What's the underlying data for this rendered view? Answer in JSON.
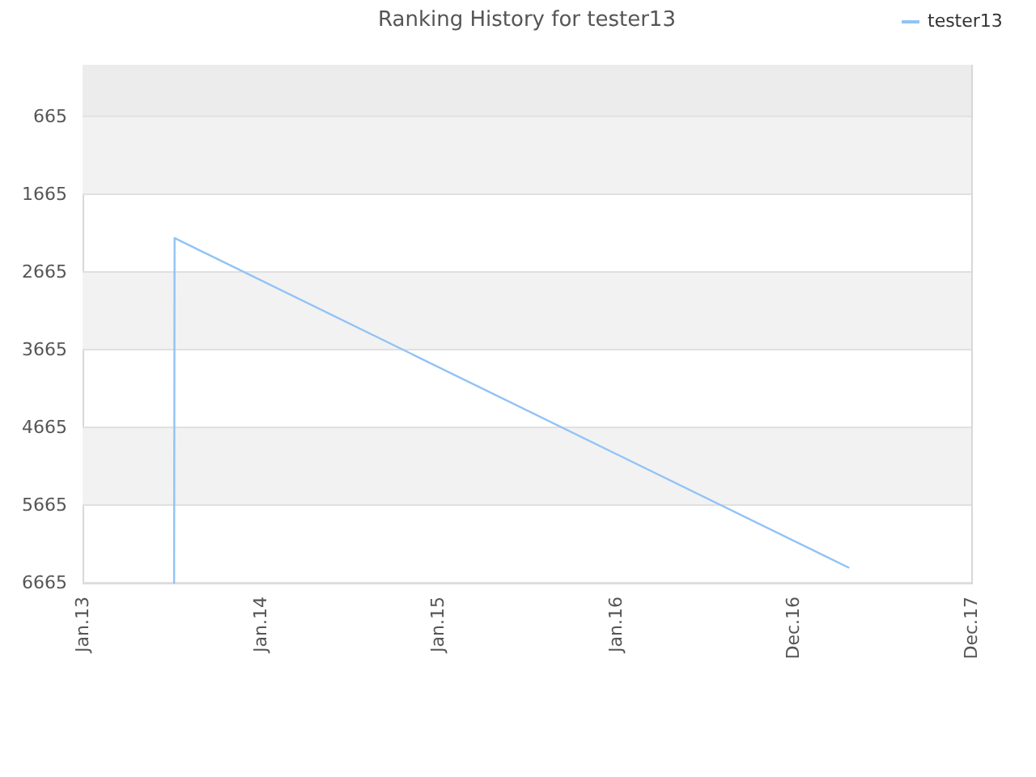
{
  "chart_data": {
    "type": "line",
    "title": "Ranking History for tester13",
    "series": [
      {
        "name": "tester13",
        "color": "#91c3f5",
        "x": [
          "2013-07-08",
          "2013-07-09",
          "2017-04-23"
        ],
        "values": [
          6665,
          2230,
          6470
        ]
      }
    ],
    "xlim": [
      "2013-01-01",
      "2017-12-31"
    ],
    "xticks": [
      {
        "value": "2013-01-01",
        "label": "Jan.13"
      },
      {
        "value": "2014-01-01",
        "label": "Jan.14"
      },
      {
        "value": "2015-01-01",
        "label": "Jan.15"
      },
      {
        "value": "2016-01-01",
        "label": "Jan.16"
      },
      {
        "value": "2016-12-31",
        "label": "Dec.16"
      },
      {
        "value": "2017-12-31",
        "label": "Dec.17"
      }
    ],
    "ylim": [
      6665,
      0
    ],
    "yticks": [
      665,
      1665,
      2665,
      3665,
      4665,
      5665,
      6665
    ],
    "bands": [
      {
        "axis": "y",
        "from": 0,
        "to": 665,
        "color": "#ececec"
      },
      {
        "axis": "y",
        "from": 665,
        "to": 1665,
        "color": "#f2f2f2"
      },
      {
        "axis": "y",
        "from": 2665,
        "to": 3665,
        "color": "#f2f2f2"
      },
      {
        "axis": "y",
        "from": 4665,
        "to": 5665,
        "color": "#f2f2f2"
      }
    ],
    "grid": "y",
    "legend": "top right"
  }
}
